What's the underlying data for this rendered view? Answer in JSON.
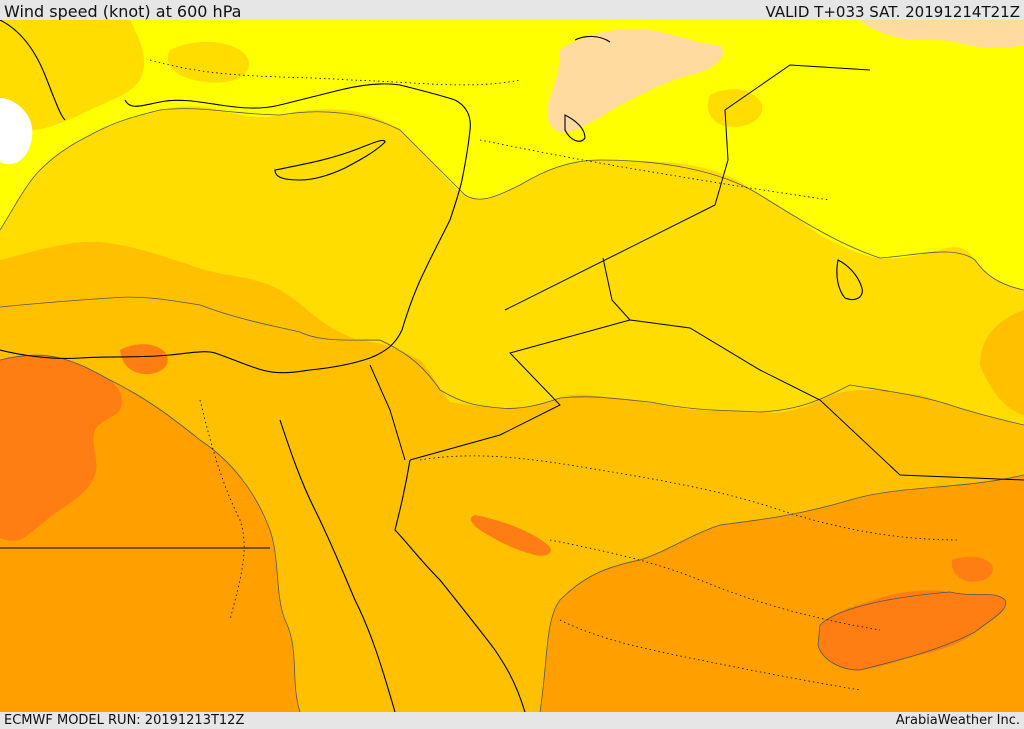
{
  "header": {
    "title": "Wind speed (knot) at 600 hPa",
    "valid_time": "VALID T+033 SAT. 20191214T21Z"
  },
  "footer": {
    "model_run": "ECMWF MODEL RUN: 20191213T12Z",
    "credit": "ArabiaWeather Inc."
  },
  "map": {
    "region": "Eastern Mediterranean, Levant, Egypt and northern Arabia",
    "colors": {
      "lightest_band": "#ffffff",
      "yellow_band": "#ffff00",
      "gold_band": "#ffdd00",
      "amber_band": "#ffc000",
      "orange_band": "#ffa000",
      "dark_orange_band": "#ff7e14",
      "peach_band": "#ffdba0",
      "contour_line": "#555555",
      "coastline": "#000000",
      "border": "#000000"
    }
  }
}
